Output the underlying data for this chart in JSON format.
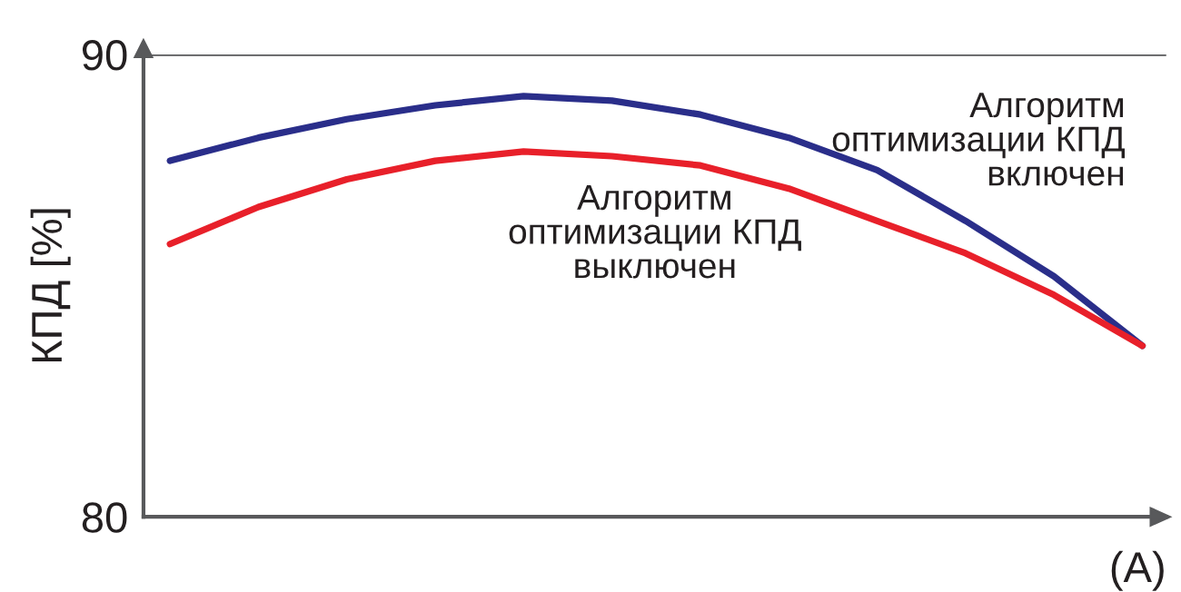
{
  "chart_data": {
    "type": "line",
    "xlabel": "(A)",
    "ylabel": "КПД [%]",
    "categories": [
      null,
      null,
      null,
      null,
      null,
      null,
      null,
      null,
      null,
      null,
      null,
      null
    ],
    "series": [
      {
        "name": "Алгоритм\nоптимизации КПД\nвключен",
        "color": "#2a2e8a",
        "values": [
          87.7,
          88.2,
          88.6,
          88.9,
          89.1,
          89.0,
          88.7,
          88.2,
          87.5,
          86.4,
          85.2,
          83.7
        ]
      },
      {
        "name": "Алгоритм\nоптимизации КПД\nвыключен",
        "color": "#e8202a",
        "values": [
          85.9,
          86.7,
          87.3,
          87.7,
          87.9,
          87.8,
          87.6,
          87.1,
          86.4,
          85.7,
          84.8,
          83.7
        ]
      }
    ],
    "ylim": [
      80,
      90
    ],
    "yticks": [
      80,
      90
    ],
    "grid": "y",
    "legend": false,
    "marker": "none",
    "line_style": "solid"
  }
}
